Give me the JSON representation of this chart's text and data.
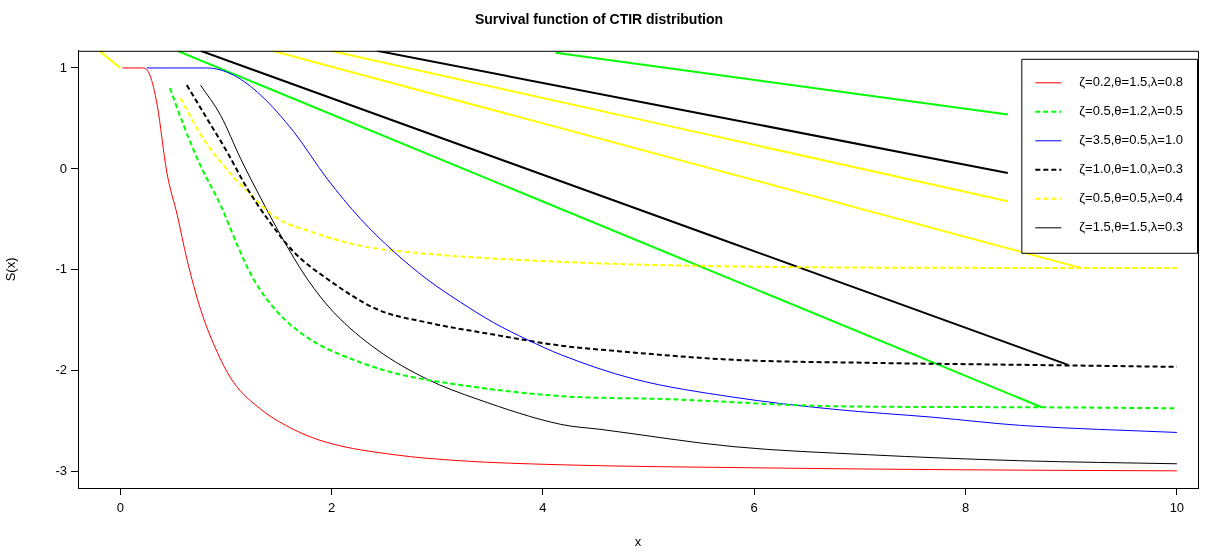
{
  "chart_data": {
    "type": "line",
    "title": "Survival function of CTIR distribution",
    "xlabel": "x",
    "ylabel": "S(x)",
    "xlim": [
      -0.4,
      10.2
    ],
    "ylim": [
      -3.16,
      1.17
    ],
    "xticks": [
      0,
      2,
      4,
      6,
      8,
      10
    ],
    "yticks": [
      -3,
      -2,
      -1,
      0,
      1
    ],
    "grid": false,
    "legend": "top right",
    "marker": "none",
    "series": [
      {
        "name": "ζ=0.2,θ=1.5,λ=0.8",
        "color": "#ff0000",
        "line_style": "solid",
        "x": [
          0.02,
          0.21,
          0.28,
          0.35,
          0.44,
          0.54,
          0.63,
          0.76,
          0.92,
          1.07,
          1.33,
          1.64,
          1.96,
          2.59,
          3.22,
          4.17,
          6,
          8,
          10
        ],
        "values": [
          1,
          1,
          0.93,
          0.63,
          -0.03,
          -0.46,
          -0.89,
          -1.39,
          -1.82,
          -2.11,
          -2.38,
          -2.58,
          -2.71,
          -2.83,
          -2.89,
          -2.93,
          -2.96,
          -2.98,
          -2.99
        ]
      },
      {
        "name": "ζ=0.5,θ=1.2,λ=0.5",
        "color": "#00ff00",
        "line_style": "dashed",
        "x": [
          0.47,
          0.6,
          0.76,
          0.95,
          1.11,
          1.26,
          1.49,
          1.8,
          2.11,
          2.59,
          3.22,
          4.17,
          5.18,
          6.75,
          8.52,
          10
        ],
        "values": [
          0.8,
          0.43,
          0.03,
          -0.36,
          -0.76,
          -1.09,
          -1.42,
          -1.69,
          -1.85,
          -2.02,
          -2.14,
          -2.25,
          -2.28,
          -2.35,
          -2.36,
          -2.37
        ]
      },
      {
        "name": "ζ=3.5,θ=0.5,λ=1.0",
        "color": "#0000ff",
        "line_style": "solid",
        "x": [
          0.25,
          0.82,
          1.07,
          1.33,
          1.64,
          1.96,
          2.27,
          2.59,
          2.9,
          3.22,
          3.53,
          3.85,
          4.17,
          4.86,
          5.8,
          6.75,
          7.7,
          8.52,
          10
        ],
        "values": [
          1,
          1,
          0.93,
          0.73,
          0.37,
          -0.1,
          -0.49,
          -0.82,
          -1.09,
          -1.32,
          -1.52,
          -1.69,
          -1.84,
          -2.08,
          -2.26,
          -2.38,
          -2.46,
          -2.54,
          -2.61
        ]
      },
      {
        "name": "ζ=1.0,θ=1.0,λ=0.3",
        "color": "#000000",
        "line_style": "dashed",
        "x": [
          0.63,
          0.82,
          1.01,
          1.2,
          1.39,
          1.64,
          1.96,
          2.43,
          2.9,
          3.53,
          4.17,
          4.55,
          5.8,
          7.07,
          8.52,
          10
        ],
        "values": [
          0.83,
          0.5,
          0.17,
          -0.19,
          -0.49,
          -0.82,
          -1.09,
          -1.39,
          -1.52,
          -1.64,
          -1.75,
          -1.79,
          -1.89,
          -1.92,
          -1.94,
          -1.96
        ]
      },
      {
        "name": "ζ=0.5,θ=0.5,λ=0.4",
        "color": "#ffff00",
        "line_style": "dashed",
        "x": [
          0.57,
          0.76,
          0.98,
          1.2,
          1.49,
          1.8,
          2.27,
          2.9,
          4.17,
          5.49,
          8.52,
          10
        ],
        "values": [
          0.7,
          0.34,
          0.03,
          -0.22,
          -0.49,
          -0.62,
          -0.76,
          -0.84,
          -0.92,
          -0.96,
          -0.98,
          -0.98
        ]
      },
      {
        "name": "ζ=1.5,θ=1.5,λ=0.3",
        "color": "#000000",
        "line_style": "solid",
        "x": [
          0.76,
          0.95,
          1.14,
          1.33,
          1.52,
          1.77,
          2.02,
          2.43,
          2.9,
          3.38,
          4.17,
          4.55,
          5.8,
          7.07,
          8.52,
          10
        ],
        "values": [
          0.83,
          0.53,
          0.1,
          -0.29,
          -0.66,
          -1.09,
          -1.42,
          -1.79,
          -2.08,
          -2.28,
          -2.53,
          -2.58,
          -2.75,
          -2.83,
          -2.89,
          -2.92
        ]
      },
      {
        "color": "#ffff00",
        "line_style": "solid",
        "x": [
          -0.2,
          0
        ],
        "values": [
          1.17,
          1
        ]
      },
      {
        "color": "#00ff00",
        "line_style": "solid",
        "x": [
          0.54,
          8.72
        ],
        "values": [
          1.17,
          -2.36
        ]
      },
      {
        "color": "#00ff00",
        "line_style": "solid",
        "x": [
          4.12,
          8.4
        ],
        "values": [
          1.15,
          0.54
        ]
      },
      {
        "color": "#000000",
        "line_style": "solid",
        "x": [
          0.76,
          8.97
        ],
        "values": [
          1.17,
          -1.94
        ]
      },
      {
        "color": "#000000",
        "line_style": "solid",
        "x": [
          2.43,
          8.4
        ],
        "values": [
          1.17,
          -0.04
        ]
      },
      {
        "color": "#ffff00",
        "line_style": "solid",
        "x": [
          1.99,
          8.4
        ],
        "values": [
          1.17,
          -0.32
        ]
      },
      {
        "color": "#ffff00",
        "line_style": "solid",
        "x": [
          1.44,
          9.09
        ],
        "values": [
          1.17,
          -0.98
        ]
      }
    ]
  }
}
